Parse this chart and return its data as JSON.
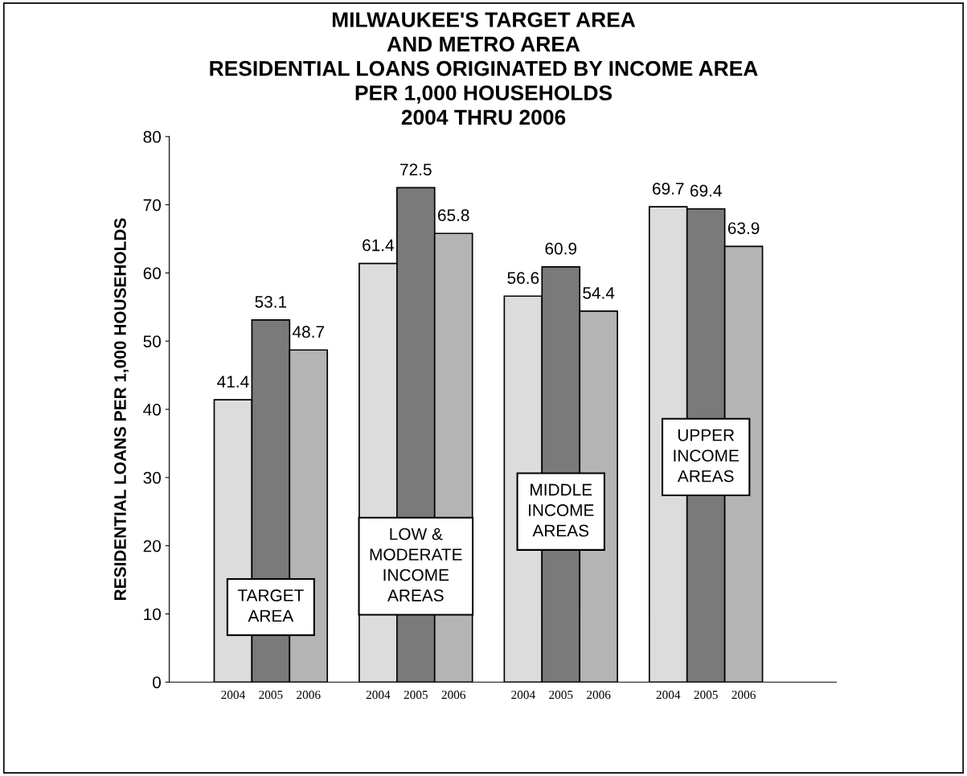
{
  "chart_data": {
    "type": "bar",
    "title": "MILWAUKEE'S TARGET AREA\nAND METRO AREA\nRESIDENTIAL LOANS ORIGINATED BY INCOME AREA\nPER 1,000 HOUSEHOLDS\n2004 THRU 2006",
    "ylabel": "RESIDENTIAL LOANS PER 1,000 HOUSEHOLDS",
    "categories": [
      "TARGET\nAREA",
      "LOW &\nMODERATE\nINCOME\nAREAS",
      "MIDDLE\nINCOME\nAREAS",
      "UPPER\nINCOME\nAREAS"
    ],
    "series": [
      {
        "name": "2004",
        "color": "#dcdcdc",
        "values": [
          41.4,
          61.4,
          56.6,
          69.7
        ]
      },
      {
        "name": "2005",
        "color": "#7a7a7a",
        "values": [
          53.1,
          72.5,
          60.9,
          69.4
        ]
      },
      {
        "name": "2006",
        "color": "#b4b4b4",
        "values": [
          48.7,
          65.8,
          54.4,
          63.9
        ]
      }
    ],
    "ylim": [
      0,
      80
    ],
    "yticks": [
      0,
      10,
      20,
      30,
      40,
      50,
      60,
      70,
      80
    ],
    "data_labels": true,
    "grid": false,
    "legend": false
  }
}
